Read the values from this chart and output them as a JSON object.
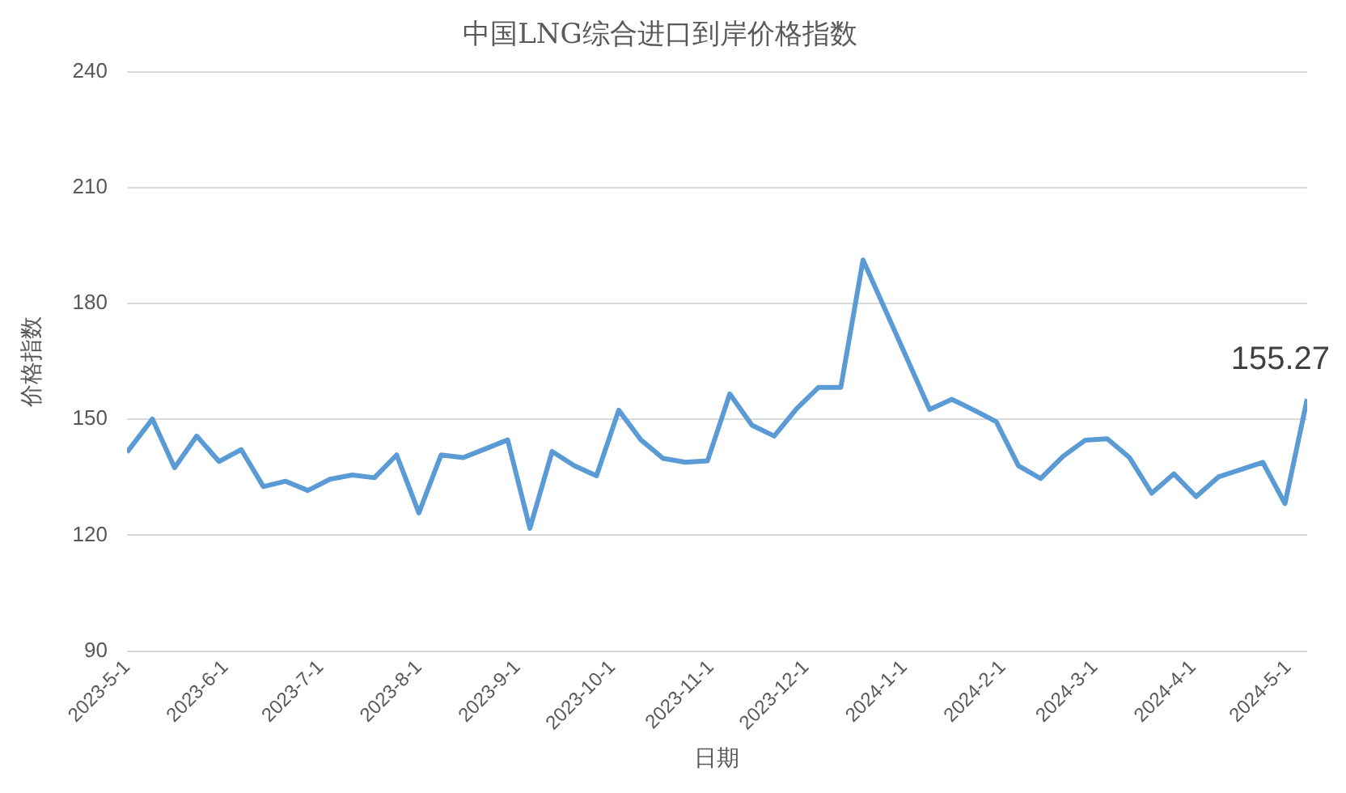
{
  "chart_data": {
    "type": "line",
    "title": "中国LNG综合进口到岸价格指数",
    "xlabel": "日期",
    "ylabel": "价格指数",
    "x": [
      "2023-05-01",
      "2023-05-09",
      "2023-05-16",
      "2023-05-23",
      "2023-05-30",
      "2023-06-06",
      "2023-06-13",
      "2023-06-20",
      "2023-06-27",
      "2023-07-04",
      "2023-07-11",
      "2023-07-18",
      "2023-07-25",
      "2023-08-01",
      "2023-08-08",
      "2023-08-15",
      "2023-08-22",
      "2023-08-29",
      "2023-09-05",
      "2023-09-12",
      "2023-09-19",
      "2023-09-26",
      "2023-10-03",
      "2023-10-10",
      "2023-10-17",
      "2023-10-24",
      "2023-10-31",
      "2023-11-07",
      "2023-11-14",
      "2023-11-21",
      "2023-11-28",
      "2023-12-05",
      "2023-12-12",
      "2023-12-19",
      "2023-12-26",
      "2024-01-02",
      "2024-01-09",
      "2024-01-16",
      "2024-01-23",
      "2024-01-30",
      "2024-02-06",
      "2024-02-13",
      "2024-02-20",
      "2024-02-27",
      "2024-03-05",
      "2024-03-12",
      "2024-03-19",
      "2024-03-26",
      "2024-04-02",
      "2024-04-09",
      "2024-04-16",
      "2024-04-23",
      "2024-04-30",
      "2024-05-07"
    ],
    "series": [
      {
        "color": "#5b9bd5",
        "values": [
          141.5,
          150.1,
          137.5,
          145.7,
          139.1,
          142.2,
          132.6,
          134.0,
          131.6,
          134.5,
          135.6,
          134.9,
          140.8,
          125.8,
          140.8,
          140.1,
          142.4,
          144.7,
          121.8,
          141.7,
          138.0,
          135.4,
          152.4,
          144.7,
          139.9,
          138.9,
          139.3,
          156.6,
          148.5,
          145.7,
          152.7,
          158.3,
          158.3,
          191.3,
          178.4,
          165.5,
          152.6,
          155.2,
          152.4,
          149.4,
          138.0,
          134.7,
          140.4,
          144.6,
          145.0,
          140.1,
          130.9,
          135.9,
          130.0,
          135.1,
          137.0,
          138.9,
          128.2,
          155.27
        ],
        "value_labels": [
          null,
          null,
          null,
          null,
          null,
          null,
          null,
          null,
          null,
          null,
          null,
          null,
          null,
          null,
          null,
          null,
          null,
          null,
          null,
          null,
          null,
          null,
          null,
          null,
          null,
          null,
          null,
          null,
          null,
          null,
          null,
          null,
          null,
          null,
          null,
          null,
          null,
          null,
          null,
          null,
          null,
          null,
          null,
          null,
          null,
          null,
          null,
          null,
          null,
          null,
          null,
          null,
          null,
          "155.27"
        ]
      }
    ],
    "xlim": [
      "2023-05-01",
      "2024-05-07"
    ],
    "xticks": [
      {
        "value": "2023-05-01",
        "label": "2023-5-1"
      },
      {
        "value": "2023-06-01",
        "label": "2023-6-1"
      },
      {
        "value": "2023-07-01",
        "label": "2023-7-1"
      },
      {
        "value": "2023-08-01",
        "label": "2023-8-1"
      },
      {
        "value": "2023-09-01",
        "label": "2023-9-1"
      },
      {
        "value": "2023-10-01",
        "label": "2023-10-1"
      },
      {
        "value": "2023-11-01",
        "label": "2023-11-1"
      },
      {
        "value": "2023-12-01",
        "label": "2023-12-1"
      },
      {
        "value": "2024-01-01",
        "label": "2024-1-1"
      },
      {
        "value": "2024-02-01",
        "label": "2024-2-1"
      },
      {
        "value": "2024-03-01",
        "label": "2024-3-1"
      },
      {
        "value": "2024-04-01",
        "label": "2024-4-1"
      },
      {
        "value": "2024-05-01",
        "label": "2024-5-1"
      }
    ],
    "ylim": [
      90,
      240
    ],
    "yticks": [
      90,
      120,
      150,
      180,
      210,
      240
    ],
    "grid": "y",
    "legend": false,
    "marker": "none",
    "line_style": "solid"
  }
}
